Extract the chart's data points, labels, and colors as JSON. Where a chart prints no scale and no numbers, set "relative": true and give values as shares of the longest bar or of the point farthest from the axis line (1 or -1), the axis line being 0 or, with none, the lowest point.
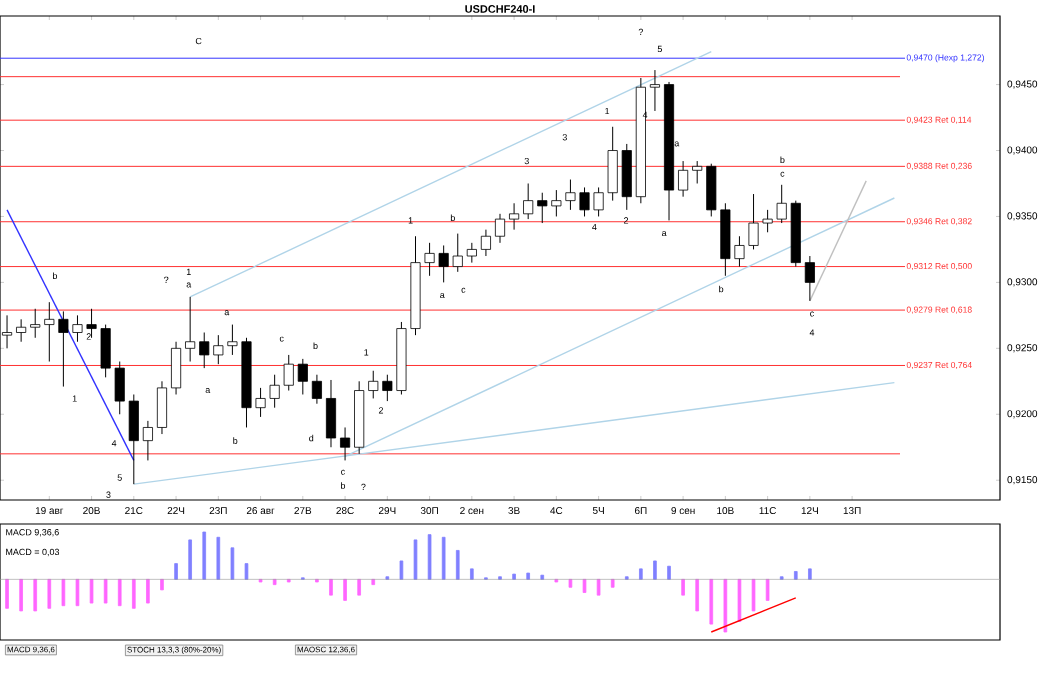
{
  "chart_data": [
    {
      "type": "candlestick",
      "title": "USDCHF240-I",
      "color": "#000000",
      "categories": [
        null,
        null,
        null,
        "19 авг",
        null,
        null,
        "20В",
        null,
        null,
        "21С",
        null,
        null,
        "22Ч",
        null,
        null,
        "23П",
        null,
        null,
        "26 авг",
        null,
        null,
        "27В",
        null,
        null,
        "28С",
        null,
        null,
        "29Ч",
        null,
        null,
        "30П",
        null,
        null,
        "2 сен",
        null,
        null,
        "3В",
        null,
        null,
        "4С",
        null,
        null,
        "5Ч",
        null,
        null,
        "6П",
        null,
        null,
        "9 сен",
        null,
        null,
        "10В",
        null,
        null,
        "11С",
        null,
        null,
        "12Ч",
        null,
        null,
        "13П",
        null,
        null,
        null,
        null,
        null,
        null,
        null,
        null,
        null,
        null
      ],
      "ohlc": [
        [
          0.926,
          0.9275,
          0.925,
          0.9262
        ],
        [
          0.9262,
          0.9272,
          0.9255,
          0.9266
        ],
        [
          0.9266,
          0.928,
          0.9258,
          0.9268
        ],
        [
          0.9268,
          0.9285,
          0.924,
          0.9272
        ],
        [
          0.9272,
          0.9278,
          0.9221,
          0.9262
        ],
        [
          0.9262,
          0.9275,
          0.9255,
          0.9268
        ],
        [
          0.9268,
          0.928,
          0.9258,
          0.9265
        ],
        [
          0.9265,
          0.9268,
          0.9228,
          0.9235
        ],
        [
          0.9235,
          0.924,
          0.92,
          0.921
        ],
        [
          0.921,
          0.9215,
          0.9147,
          0.918
        ],
        [
          0.918,
          0.9195,
          0.9165,
          0.919
        ],
        [
          0.919,
          0.9225,
          0.9185,
          0.922
        ],
        [
          0.922,
          0.9255,
          0.9215,
          0.925
        ],
        [
          0.925,
          0.9289,
          0.924,
          0.9255
        ],
        [
          0.9255,
          0.9262,
          0.9235,
          0.9245
        ],
        [
          0.9245,
          0.926,
          0.9238,
          0.9252
        ],
        [
          0.9252,
          0.9268,
          0.9245,
          0.9255
        ],
        [
          0.9255,
          0.9258,
          0.919,
          0.9205
        ],
        [
          0.9205,
          0.922,
          0.9198,
          0.9212
        ],
        [
          0.9212,
          0.923,
          0.9205,
          0.9222
        ],
        [
          0.9222,
          0.9245,
          0.9218,
          0.9238
        ],
        [
          0.9238,
          0.9242,
          0.9215,
          0.9225
        ],
        [
          0.9225,
          0.923,
          0.9208,
          0.9212
        ],
        [
          0.9212,
          0.9226,
          0.9175,
          0.9182
        ],
        [
          0.9182,
          0.919,
          0.9165,
          0.9175
        ],
        [
          0.9175,
          0.9225,
          0.917,
          0.9218
        ],
        [
          0.9218,
          0.9233,
          0.9212,
          0.9225
        ],
        [
          0.9225,
          0.923,
          0.921,
          0.9218
        ],
        [
          0.9218,
          0.927,
          0.9215,
          0.9265
        ],
        [
          0.9265,
          0.9335,
          0.926,
          0.9315
        ],
        [
          0.9315,
          0.933,
          0.9305,
          0.9322
        ],
        [
          0.9322,
          0.9328,
          0.93,
          0.9312
        ],
        [
          0.9312,
          0.9337,
          0.9308,
          0.932
        ],
        [
          0.932,
          0.933,
          0.9315,
          0.9325
        ],
        [
          0.9325,
          0.934,
          0.932,
          0.9335
        ],
        [
          0.9335,
          0.9352,
          0.933,
          0.9348
        ],
        [
          0.9348,
          0.936,
          0.934,
          0.9352
        ],
        [
          0.9352,
          0.9375,
          0.9348,
          0.9362
        ],
        [
          0.9362,
          0.9368,
          0.9345,
          0.9358
        ],
        [
          0.9358,
          0.937,
          0.935,
          0.9362
        ],
        [
          0.9362,
          0.9378,
          0.9355,
          0.9368
        ],
        [
          0.9368,
          0.9372,
          0.935,
          0.9355
        ],
        [
          0.9355,
          0.9372,
          0.935,
          0.9368
        ],
        [
          0.9368,
          0.9418,
          0.9362,
          0.94
        ],
        [
          0.94,
          0.9405,
          0.9355,
          0.9365
        ],
        [
          0.9365,
          0.9455,
          0.936,
          0.9448
        ],
        [
          0.9448,
          0.9461,
          0.943,
          0.945
        ],
        [
          0.945,
          0.9452,
          0.9347,
          0.937
        ],
        [
          0.937,
          0.9392,
          0.9365,
          0.9385
        ],
        [
          0.9385,
          0.9392,
          0.9375,
          0.9388
        ],
        [
          0.9388,
          0.939,
          0.935,
          0.9355
        ],
        [
          0.9355,
          0.936,
          0.9305,
          0.9318
        ],
        [
          0.9318,
          0.9335,
          0.9312,
          0.9328
        ],
        [
          0.9328,
          0.9367,
          0.9325,
          0.9345
        ],
        [
          0.9345,
          0.9355,
          0.9338,
          0.9348
        ],
        [
          0.9348,
          0.9374,
          0.9345,
          0.936
        ],
        [
          0.936,
          0.9362,
          0.9312,
          0.9315
        ],
        [
          0.9315,
          0.932,
          0.9286,
          0.93
        ],
        null,
        null,
        null,
        null,
        null,
        null,
        null,
        null,
        null,
        null,
        null,
        null,
        null
      ],
      "series": [
        {
          "type": "line",
          "color": "#3333ff",
          "values": [
            0.9355,
            null,
            null,
            null,
            null,
            null,
            null,
            null,
            null,
            0.9165,
            null,
            null,
            null,
            null,
            null,
            null,
            null,
            null,
            null,
            null,
            null,
            null,
            null,
            null,
            null,
            null,
            null,
            null,
            null,
            null,
            null,
            null,
            null,
            null,
            null,
            null,
            null,
            null,
            null,
            null,
            null,
            null,
            null,
            null,
            null,
            null,
            null,
            null,
            null,
            null,
            null,
            null,
            null,
            null,
            null,
            null,
            null,
            null,
            null,
            null,
            null,
            null,
            null,
            null,
            null,
            null,
            null,
            null,
            null,
            null,
            null
          ]
        },
        {
          "type": "line",
          "color": "#b0d4e8",
          "values": [
            null,
            null,
            null,
            null,
            null,
            null,
            null,
            null,
            null,
            null,
            null,
            null,
            null,
            0.9289,
            null,
            null,
            null,
            null,
            null,
            null,
            null,
            null,
            null,
            null,
            null,
            null,
            null,
            null,
            null,
            null,
            null,
            null,
            null,
            null,
            null,
            null,
            null,
            null,
            null,
            null,
            null,
            null,
            null,
            null,
            null,
            null,
            null,
            null,
            null,
            null,
            0.9475,
            null,
            null,
            null,
            null,
            null,
            null,
            null,
            null,
            null,
            null,
            null,
            null,
            null,
            null,
            null,
            null,
            null,
            null,
            null,
            null
          ]
        },
        {
          "type": "line",
          "color": "#b0d4e8",
          "values": [
            null,
            null,
            null,
            null,
            null,
            null,
            null,
            null,
            null,
            0.9147,
            null,
            null,
            null,
            null,
            null,
            null,
            null,
            null,
            null,
            null,
            null,
            null,
            null,
            null,
            null,
            null,
            null,
            null,
            null,
            null,
            null,
            null,
            null,
            null,
            null,
            null,
            null,
            null,
            null,
            null,
            null,
            null,
            null,
            null,
            null,
            null,
            null,
            null,
            null,
            null,
            null,
            null,
            null,
            null,
            null,
            null,
            null,
            null,
            null,
            null,
            null,
            null,
            null,
            0.9224,
            null,
            null,
            null,
            null,
            null,
            null,
            null
          ]
        },
        {
          "type": "line",
          "color": "#b0d4e8",
          "values": [
            null,
            null,
            null,
            null,
            null,
            null,
            null,
            null,
            null,
            null,
            null,
            null,
            null,
            null,
            null,
            null,
            null,
            null,
            null,
            null,
            null,
            null,
            null,
            null,
            0.9168,
            null,
            null,
            null,
            null,
            null,
            null,
            null,
            null,
            null,
            null,
            null,
            null,
            null,
            null,
            null,
            null,
            null,
            null,
            null,
            null,
            null,
            null,
            null,
            null,
            null,
            null,
            null,
            null,
            null,
            null,
            null,
            null,
            null,
            null,
            null,
            null,
            null,
            null,
            0.9364,
            null,
            null,
            null,
            null,
            null,
            null,
            null
          ]
        },
        {
          "type": "line",
          "color": "#c0c0c0",
          "values": [
            null,
            null,
            null,
            null,
            null,
            null,
            null,
            null,
            null,
            null,
            null,
            null,
            null,
            null,
            null,
            null,
            null,
            null,
            null,
            null,
            null,
            null,
            null,
            null,
            null,
            null,
            null,
            null,
            null,
            null,
            null,
            null,
            null,
            null,
            null,
            null,
            null,
            null,
            null,
            null,
            null,
            null,
            null,
            null,
            null,
            null,
            null,
            null,
            null,
            null,
            null,
            null,
            null,
            null,
            null,
            null,
            null,
            0.9286,
            null,
            null,
            null,
            0.9377,
            null,
            null,
            null,
            null,
            null,
            null,
            null,
            null,
            null
          ]
        }
      ],
      "ylim": [
        0.9135,
        0.9502
      ],
      "yticks": [
        {
          "value": 0.915,
          "label": "0,9150"
        },
        {
          "value": 0.92,
          "label": "0,9200"
        },
        {
          "value": 0.925,
          "label": "0,9250"
        },
        {
          "value": 0.93,
          "label": "0,9300"
        },
        {
          "value": 0.935,
          "label": "0,9350"
        },
        {
          "value": 0.94,
          "label": "0,9400"
        },
        {
          "value": 0.945,
          "label": "0,9450"
        }
      ],
      "ref_lines": [
        {
          "axis": "y",
          "value": 0.947,
          "label": "0,9470 (Hexp 1,272)",
          "color": "#3333ff"
        },
        {
          "axis": "y",
          "value": 0.9456,
          "label": null,
          "color": "#ff3030"
        },
        {
          "axis": "y",
          "value": 0.9423,
          "label": "0,9423 Ret 0,114",
          "color": "#ff3030"
        },
        {
          "axis": "y",
          "value": 0.9388,
          "label": "0,9388 Ret 0,236",
          "color": "#ff3030"
        },
        {
          "axis": "y",
          "value": 0.9346,
          "label": "0,9346 Ret 0,382",
          "color": "#ff3030"
        },
        {
          "axis": "y",
          "value": 0.9312,
          "label": "0,9312 Ret 0,500",
          "color": "#ff3030"
        },
        {
          "axis": "y",
          "value": 0.9279,
          "label": "0,9279 Ret 0,618",
          "color": "#ff3030"
        },
        {
          "axis": "y",
          "value": 0.9237,
          "label": "0,9237 Ret 0,764",
          "color": "#ff3030"
        },
        {
          "axis": "y",
          "value": 0.917,
          "label": null,
          "color": "#ff3030"
        }
      ],
      "annotations": [
        "C",
        "b",
        "1",
        "2",
        "3",
        "4",
        "5",
        "?",
        "1",
        "a",
        "a",
        "a",
        "b",
        "c",
        "b",
        "d",
        "c",
        "b",
        "?",
        "1",
        "2",
        "1",
        "a",
        "b",
        "c",
        "3",
        "3",
        "4",
        "1",
        "2",
        "?",
        "5",
        "4",
        "a",
        "a",
        "b",
        "b",
        "c",
        "c",
        "4"
      ]
    },
    {
      "type": "bar",
      "relative": true,
      "categories": [
        null,
        null,
        null,
        null,
        null,
        null,
        null,
        null,
        null,
        null,
        null,
        null,
        null,
        null,
        null,
        null,
        null,
        null,
        null,
        null,
        null,
        null,
        null,
        null,
        null,
        null,
        null,
        null,
        null,
        null,
        null,
        null,
        null,
        null,
        null,
        null,
        null,
        null,
        null,
        null,
        null,
        null,
        null,
        null,
        null,
        null,
        null,
        null,
        null,
        null,
        null,
        null,
        null,
        null,
        null,
        null,
        null,
        null,
        null,
        null,
        null,
        null,
        null,
        null,
        null,
        null,
        null,
        null,
        null,
        null,
        null
      ],
      "series": [
        {
          "color": "#8080ff",
          "values": [
            null,
            null,
            null,
            null,
            null,
            null,
            null,
            null,
            null,
            null,
            null,
            null,
            0.3,
            0.75,
            0.9,
            0.8,
            0.6,
            0.3,
            null,
            null,
            null,
            0.03,
            null,
            null,
            null,
            null,
            null,
            0.05,
            0.35,
            0.75,
            0.85,
            0.8,
            0.55,
            0.2,
            0.03,
            0.05,
            0.1,
            0.12,
            0.08,
            null,
            null,
            null,
            null,
            null,
            0.05,
            0.2,
            0.35,
            0.25,
            null,
            null,
            null,
            null,
            null,
            null,
            null,
            0.05,
            0.15,
            0.2,
            null,
            null,
            null,
            null,
            null,
            null,
            null,
            null,
            null,
            null,
            null,
            null,
            null
          ]
        },
        {
          "color": "#ff66ff",
          "values": [
            -0.55,
            -0.6,
            -0.6,
            -0.55,
            -0.5,
            -0.5,
            -0.45,
            -0.45,
            -0.5,
            -0.55,
            -0.45,
            -0.2,
            null,
            null,
            null,
            null,
            null,
            null,
            -0.05,
            -0.1,
            -0.05,
            null,
            -0.05,
            -0.3,
            -0.4,
            -0.3,
            -0.1,
            null,
            null,
            null,
            null,
            null,
            null,
            null,
            null,
            null,
            null,
            null,
            null,
            -0.05,
            -0.15,
            -0.25,
            -0.3,
            -0.15,
            null,
            null,
            null,
            null,
            -0.3,
            -0.6,
            -0.85,
            -1,
            -0.8,
            -0.6,
            -0.4,
            null,
            null,
            null,
            null,
            null,
            null,
            null,
            null,
            null,
            null,
            null,
            null,
            null,
            null,
            null,
            null
          ]
        },
        {
          "type": "line",
          "color": "#ff0000",
          "values": [
            null,
            null,
            null,
            null,
            null,
            null,
            null,
            null,
            null,
            null,
            null,
            null,
            null,
            null,
            null,
            null,
            null,
            null,
            null,
            null,
            null,
            null,
            null,
            null,
            null,
            null,
            null,
            null,
            null,
            null,
            null,
            null,
            null,
            null,
            null,
            null,
            null,
            null,
            null,
            null,
            null,
            null,
            null,
            null,
            null,
            null,
            null,
            null,
            null,
            null,
            -1,
            null,
            null,
            null,
            null,
            null,
            -0.35,
            null,
            null,
            null,
            null,
            null,
            null,
            null,
            null,
            null,
            null,
            null,
            null,
            null,
            null
          ]
        }
      ],
      "annotations": [
        "MACD 9,36,6",
        "MACD = 0,03",
        "MACD 9,36,6",
        "STOCH 13,3,3 (80%-20%)",
        "MAOSC 12,36,6"
      ]
    }
  ]
}
